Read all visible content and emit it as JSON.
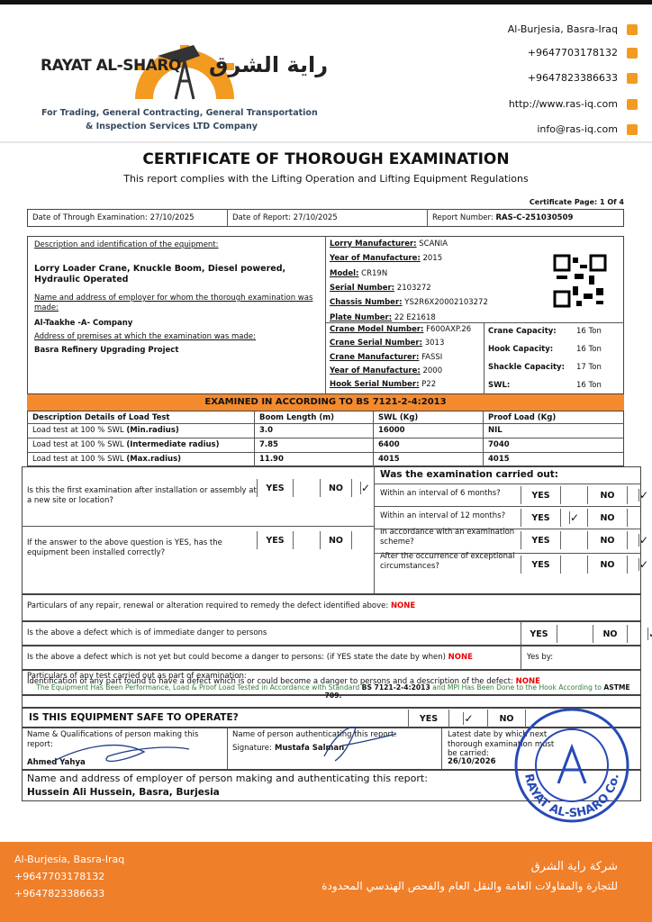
{
  "header": {
    "company_name": "RAYAT AL-SHARQ",
    "company_name_arabic": "راية الشرق",
    "tagline": [
      "For Trading, General Contracting, General Transportation",
      "& Inspection Services LTD Company"
    ],
    "contacts": [
      "Al-Burjesia, Basra-Iraq",
      "+9647703178132",
      "+9647823386633",
      "http://www.ras-iq.com",
      "info@ras-iq.com"
    ]
  },
  "title": "CERTIFICATE OF THOROUGH EXAMINATION",
  "subtitle": "This report complies with the Lifting Operation and Lifting Equipment Regulations",
  "page_label": "Certificate Page: 1 Of 4",
  "dates": [
    {
      "label": "Date of Through Examination:",
      "value": "27/10/2025"
    },
    {
      "label": "Date of Report:",
      "value": "27/10/2025"
    },
    {
      "label": "Report Number:",
      "value": "RAS-C-251030509"
    }
  ],
  "equipment": {
    "description_label": "Description and identification of the equipment:",
    "description": "Lorry Loader Crane, Knuckle Boom, Diesel powered, Hydraulic Operated",
    "employer_label": "Name and address of employer for whom the thorough examination was made:",
    "employer": "Al-Taakhe -A- Company",
    "premises_label": "Address of premises at which the examination was made:",
    "premises": "Basra Refinery Upgrading Project",
    "lorry": [
      {
        "label": "Lorry Manufacturer:",
        "value": "SCANIA"
      },
      {
        "label": "Year of Manufacture:",
        "value": "2015"
      },
      {
        "label": "Model:",
        "value": "CR19N"
      },
      {
        "label": "Serial Number:",
        "value": "2103272"
      },
      {
        "label": "Chassis Number:",
        "value": "YS2R6X20002103272"
      },
      {
        "label": "Plate Number:",
        "value": "22 E21618"
      }
    ],
    "crane": [
      {
        "label": "Crane Model Number:",
        "value": "F600AXP.26"
      },
      {
        "label": "Crane Serial Number:",
        "value": "3013"
      },
      {
        "label": "Crane Manufacturer:",
        "value": "FASSI"
      },
      {
        "label": "Year of Manufacture:",
        "value": "2000"
      },
      {
        "label": "Hook Serial Number:",
        "value": "P22"
      }
    ],
    "capacities": [
      {
        "label": "Crane Capacity:",
        "value": "16 Ton"
      },
      {
        "label": "Hook Capacity:",
        "value": "16 Ton"
      },
      {
        "label": "Shackle Capacity:",
        "value": "17 Ton"
      },
      {
        "label": "SWL:",
        "value": "16 Ton"
      }
    ]
  },
  "load_test": {
    "heading": "EXAMINED IN ACCORDING TO BS 7121-2-4:2013",
    "columns": [
      "Description Details of Load Test",
      "Boom Length (m)",
      "SWL (Kg)",
      "Proof Load (Kg)"
    ],
    "rows": [
      {
        "description": "Load test at 100 % SWL",
        "radius": "(Min.radius)",
        "boom_length": "3.0",
        "swl": "16000",
        "proof_load": "NIL"
      },
      {
        "description": "Load test at 100 % SWL",
        "radius": "(Intermediate radius)",
        "boom_length": "7.85",
        "swl": "6400",
        "proof_load": "7040"
      },
      {
        "description": "Load test at 100 % SWL",
        "radius": "(Max.radius)",
        "boom_length": "11.90",
        "swl": "4015",
        "proof_load": "4015"
      }
    ]
  },
  "answer_labels": {
    "yes": "YES",
    "no": "NO",
    "check": "✓"
  },
  "questions": {
    "left": [
      {
        "text": "Is this the first examination after installation or assembly at a new site or location?",
        "answer": "no"
      },
      {
        "text": "If the answer to the above question is YES, has the equipment been installed correctly?",
        "answer": null
      }
    ],
    "right_heading": "Was the examination carried out:",
    "right": [
      {
        "text": "Within an interval of 6 months?",
        "answer": "no"
      },
      {
        "text": "Within an interval of 12 months?",
        "answer": "yes"
      },
      {
        "text": "In accordance with an examination scheme?",
        "answer": "no"
      },
      {
        "text": "After the occurrence of exceptional circumstances?",
        "answer": "no"
      }
    ]
  },
  "remarks": {
    "repair": {
      "text": "Particulars of any repair, renewal or alteration required to remedy the defect identified above:",
      "value": "NONE"
    },
    "immediate_danger": {
      "text": "Is the above a defect which is of immediate danger to persons",
      "answer": "no"
    },
    "potential_danger": {
      "text": "Is the above a defect which is not yet but could become a danger to persons: (if YES state the date by when)",
      "value": "NONE",
      "date_label": "Yes by:"
    },
    "defect_identification": {
      "text": "Identification of any part found to have a defect which is or could become a danger to persons and a description of the defect:",
      "value": "NONE"
    },
    "tests": {
      "text": "Particulars of any test carried out as part of examination:",
      "details": [
        {
          "text": "The Equipment Has Been Performance, Load & Proof Load Tested in Accordance with Standard ",
          "bold": false
        },
        {
          "text": "BS 7121-2-4:2013",
          "bold": true
        },
        {
          "text": " and MPI Has Been Done to the Hook According to ",
          "bold": false
        },
        {
          "text": "ASTME 709.",
          "bold": true
        }
      ]
    }
  },
  "safe": {
    "text": "IS THIS EQUIPMENT SAFE TO OPERATE?",
    "answer": "yes"
  },
  "signatures": {
    "maker_label": "Name & Qualifications of person making this report:",
    "maker": "Ahmed Yahya",
    "authenticator_label": "Name of person authenticating this report:",
    "signature_label": "Signature:",
    "authenticator": "Mustafa Salman",
    "next_exam_label": "Latest date by which next thorough examination must be carried:",
    "next_exam": "26/10/2026"
  },
  "employer_of_examiner": {
    "label": "Name and address of employer of person making and authenticating this report:",
    "value": "Hussein Ali Hussein, Basra, Burjesia"
  },
  "stamp": {
    "text": "RAYAT AL-SHARQ Co."
  },
  "footer": {
    "contacts": [
      "Al-Burjesia, Basra-Iraq",
      "+9647703178132",
      "+9647823386633"
    ],
    "arabic": [
      "شركة راية الشرق",
      "للتجارة والمقاولات العامة والنقل العام والفحص الهندسي المحدودة"
    ]
  }
}
